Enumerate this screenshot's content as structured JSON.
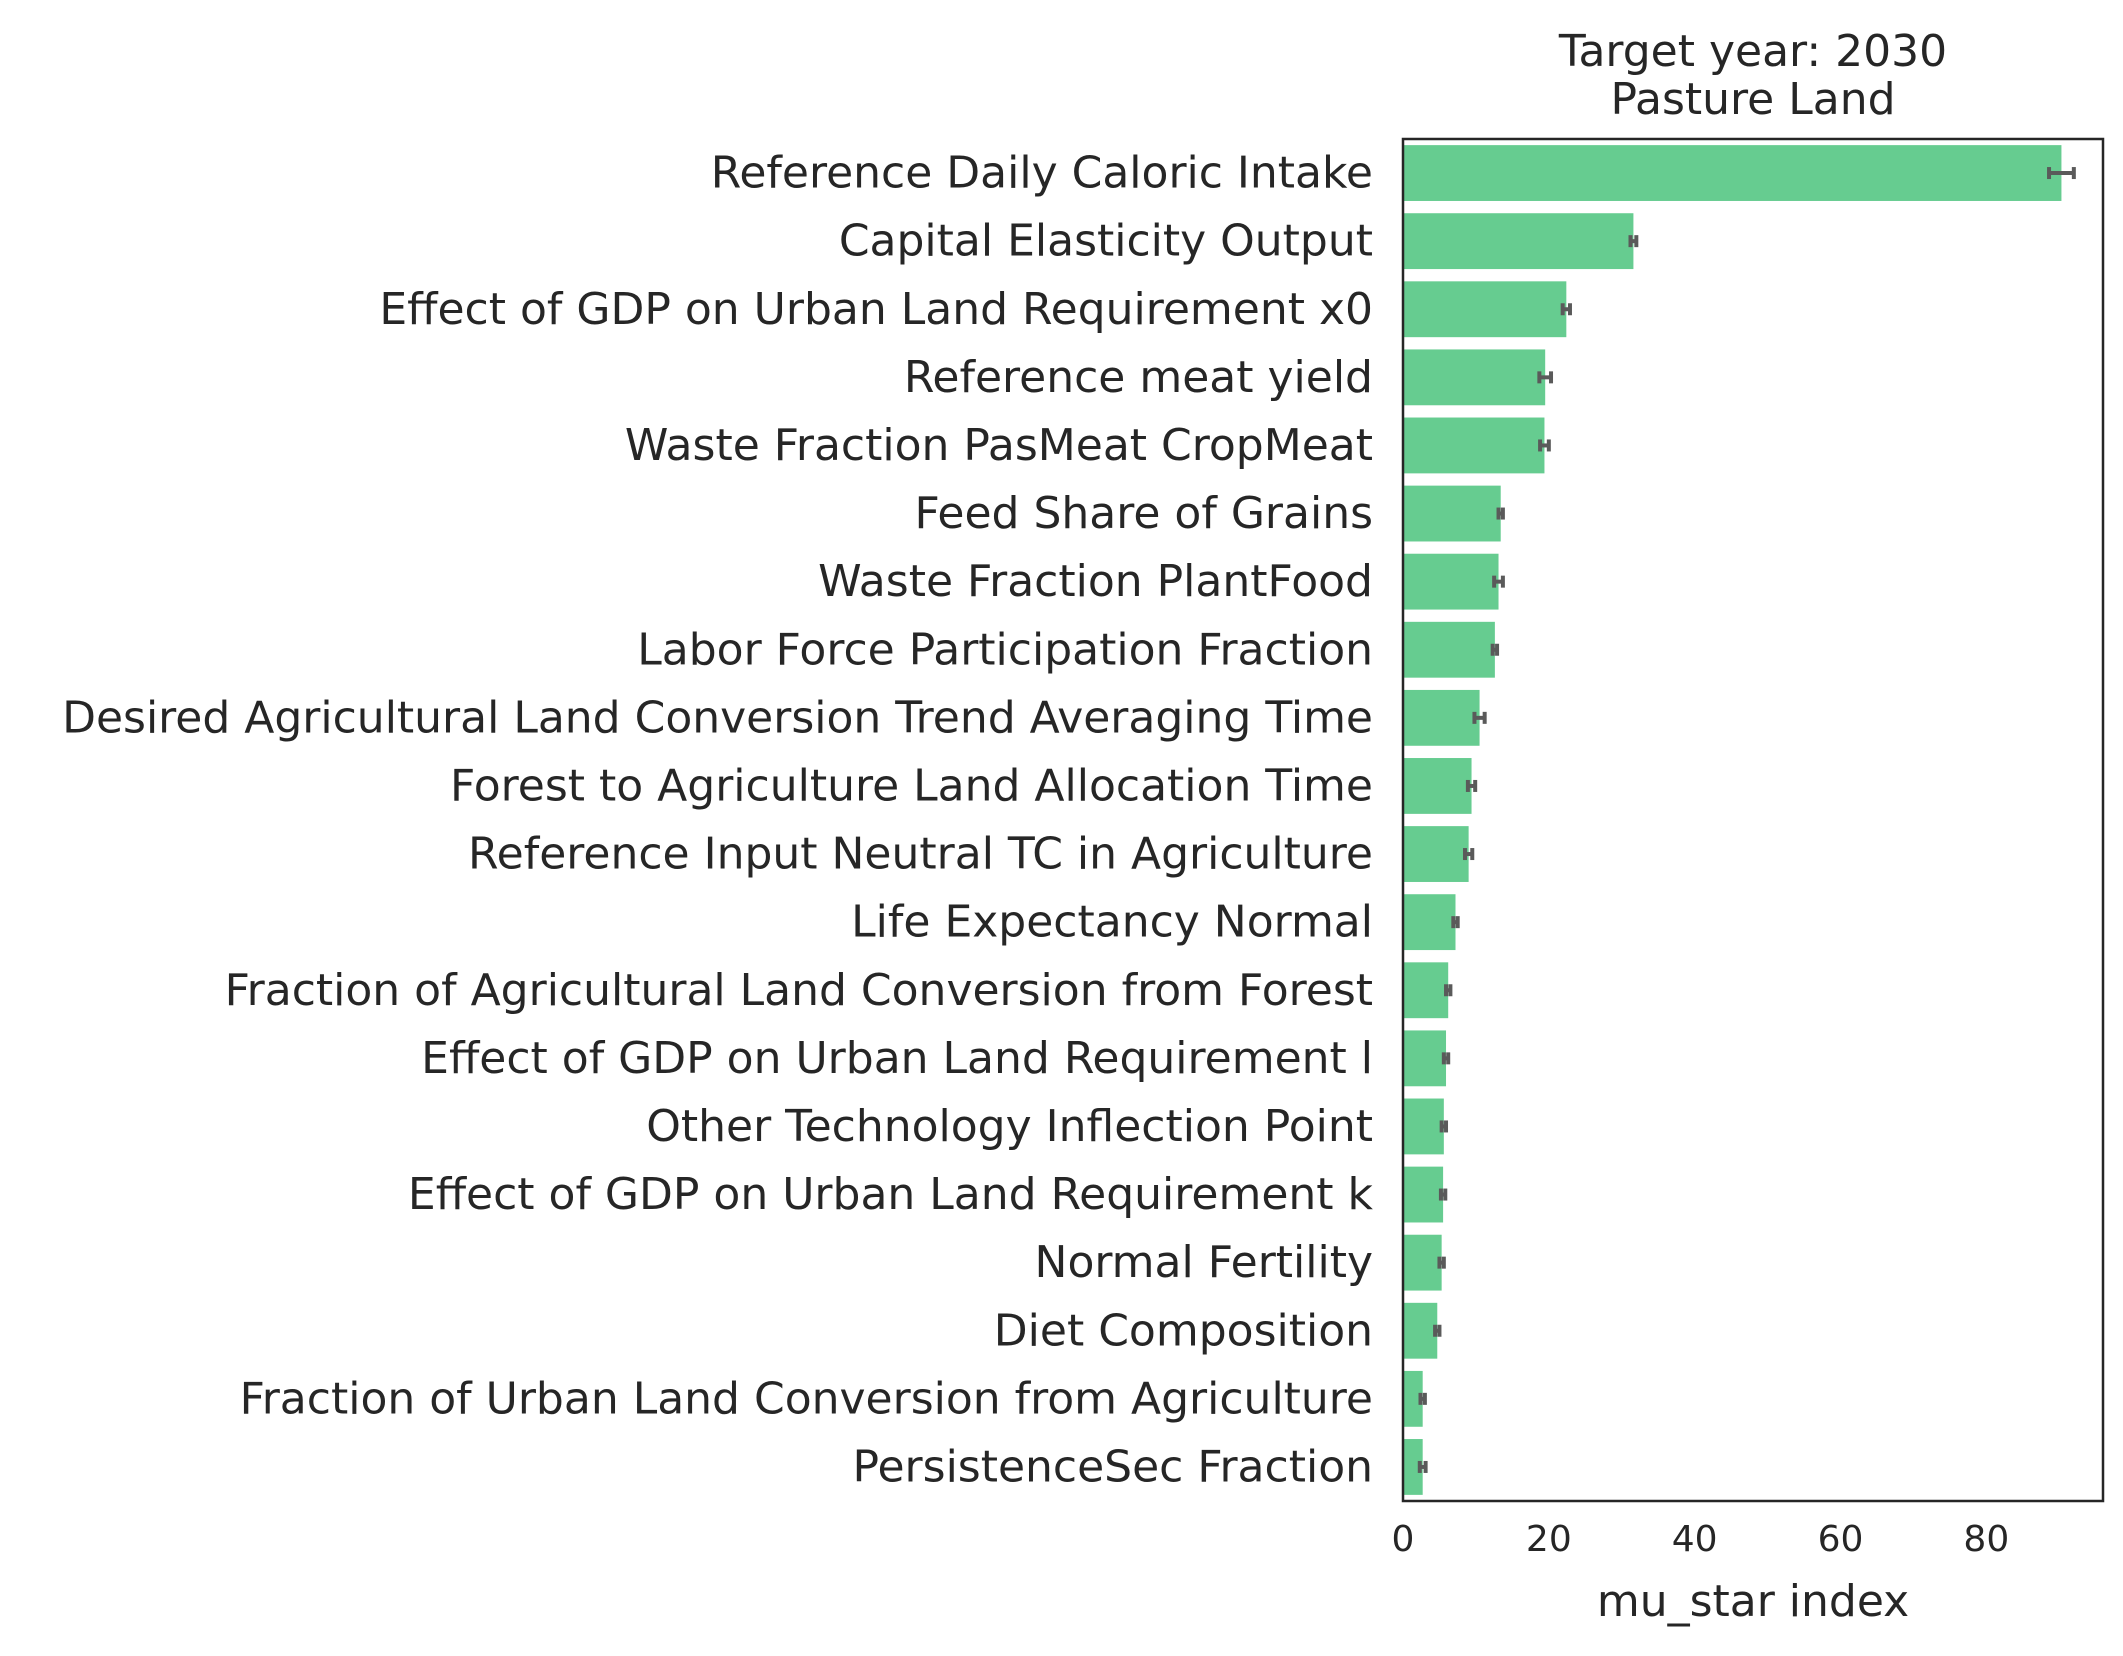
{
  "chart_data": {
    "type": "bar",
    "orientation": "horizontal",
    "title": "Target year: 2030",
    "subtitle": "Pasture Land",
    "xlabel": "mu_star index",
    "ylabel": "",
    "xlim": [
      0,
      96
    ],
    "xticks": [
      0,
      20,
      40,
      60,
      80
    ],
    "grid": false,
    "bar_color": "#66cc90",
    "error_color": "#5a5a5a",
    "axis_color": "#262626",
    "categories": [
      "Reference Daily Caloric Intake",
      "Capital Elasticity Output",
      "Effect of GDP on Urban Land Requirement x0",
      "Reference meat yield",
      "Waste Fraction PasMeat CropMeat",
      "Feed Share of Grains",
      "Waste Fraction PlantFood",
      "Labor Force Participation Fraction",
      "Desired Agricultural Land Conversion Trend Averaging Time",
      "Forest to Agriculture Land Allocation Time",
      "Reference Input Neutral TC in Agriculture",
      "Life Expectancy Normal",
      "Fraction of Agricultural Land Conversion from Forest",
      "Effect of GDP on Urban Land Requirement l",
      "Other Technology Inflection Point",
      "Effect of GDP on Urban Land Requirement k",
      "Normal Fertility",
      "Diet Composition",
      "Fraction of Urban Land Conversion from Agriculture",
      "PersistenceSec Fraction"
    ],
    "values": [
      90.3,
      31.6,
      22.4,
      19.5,
      19.4,
      13.4,
      13.1,
      12.6,
      10.5,
      9.4,
      9.0,
      7.2,
      6.2,
      5.9,
      5.6,
      5.5,
      5.3,
      4.7,
      2.7,
      2.7
    ],
    "errors": [
      1.7,
      0.4,
      0.5,
      0.8,
      0.6,
      0.3,
      0.6,
      0.3,
      0.7,
      0.5,
      0.5,
      0.3,
      0.3,
      0.3,
      0.3,
      0.3,
      0.3,
      0.3,
      0.3,
      0.4
    ]
  }
}
